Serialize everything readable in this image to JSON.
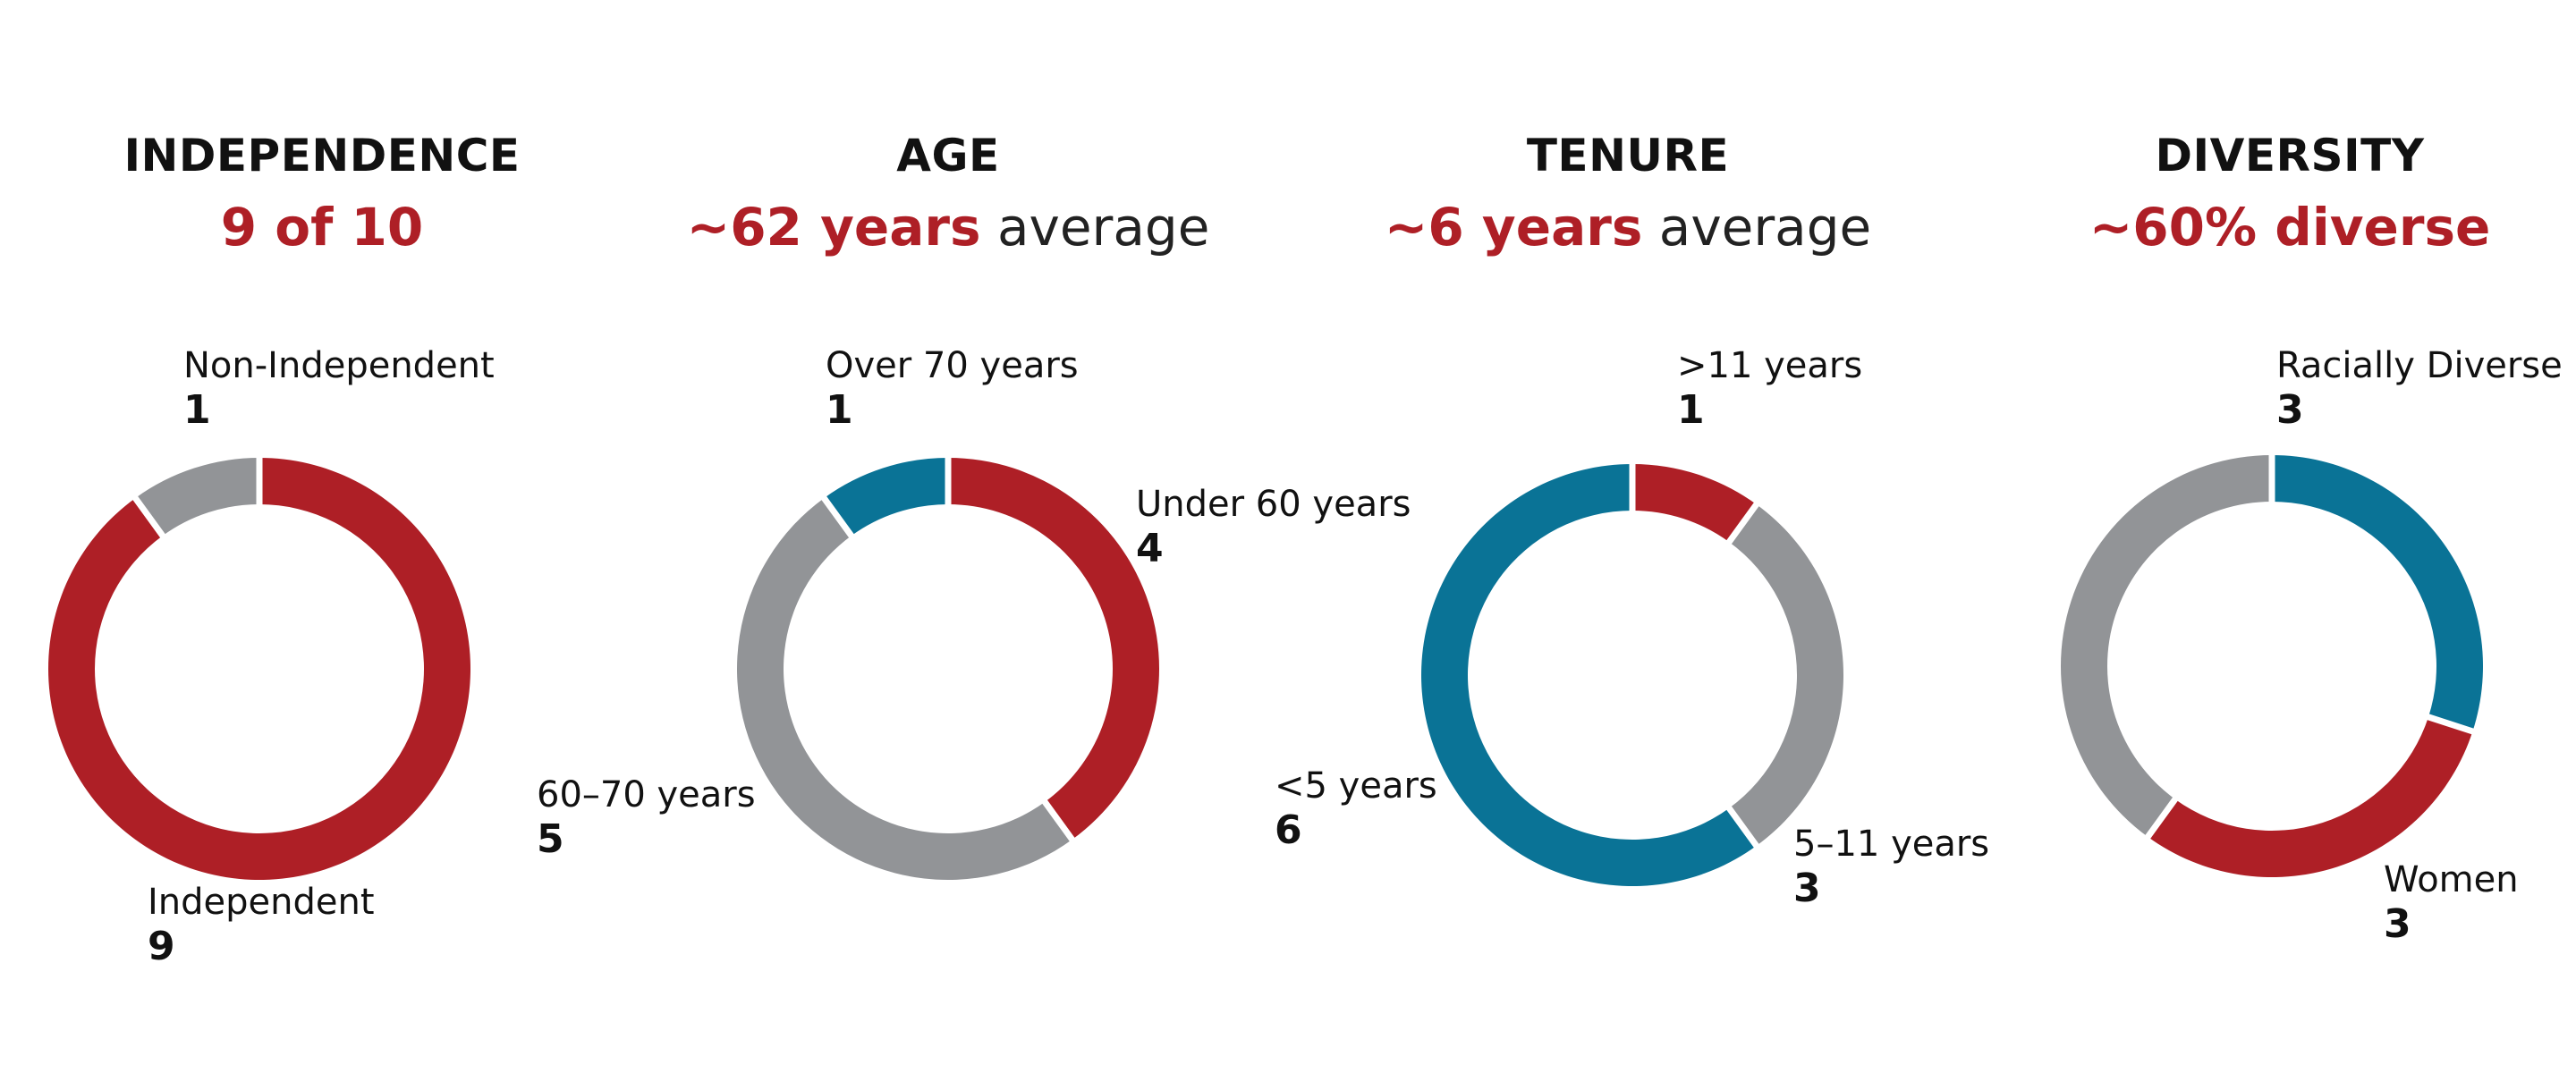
{
  "colors": {
    "red": "#ae1f26",
    "teal": "#0a7396",
    "gray": "#929497",
    "separator": "#ffffff"
  },
  "chart_data": [
    {
      "type": "pie",
      "title": "INDEPENDENCE",
      "subtitle_highlight": "9 of 10",
      "subtitle_rest": "",
      "slices": [
        {
          "label": "Independent",
          "value": 9,
          "display": "9",
          "color": "#ae1f26"
        },
        {
          "label": "Non-Independent",
          "value": 1,
          "display": "1",
          "color": "#929497"
        }
      ]
    },
    {
      "type": "pie",
      "title": "AGE",
      "subtitle_highlight": "~62 years",
      "subtitle_rest": "average",
      "slices": [
        {
          "label": "Under 60 years",
          "value": 4,
          "display": "4",
          "color": "#ae1f26"
        },
        {
          "label": "60–70 years",
          "value": 5,
          "display": "5",
          "color": "#929497"
        },
        {
          "label": "Over 70 years",
          "value": 1,
          "display": "1",
          "color": "#0a7396"
        }
      ]
    },
    {
      "type": "pie",
      "title": "TENURE",
      "subtitle_highlight": "~6 years",
      "subtitle_rest": "average",
      "slices": [
        {
          "label": ">11 years",
          "value": 1,
          "display": "1",
          "color": "#ae1f26"
        },
        {
          "label": "5–11 years",
          "value": 3,
          "display": "3",
          "color": "#929497"
        },
        {
          "label": "<5 years",
          "value": 6,
          "display": "6",
          "color": "#0a7396"
        }
      ]
    },
    {
      "type": "pie",
      "title": "DIVERSITY",
      "subtitle_highlight": "~60% diverse",
      "subtitle_rest": "",
      "slices": [
        {
          "label": "Racially Diverse",
          "value": 3,
          "display": "3",
          "color": "#0a7396"
        },
        {
          "label": "Women",
          "value": 3,
          "display": "3",
          "color": "#ae1f26"
        },
        {
          "label": "",
          "value": 4,
          "display": "",
          "color": "#929497"
        }
      ]
    }
  ]
}
